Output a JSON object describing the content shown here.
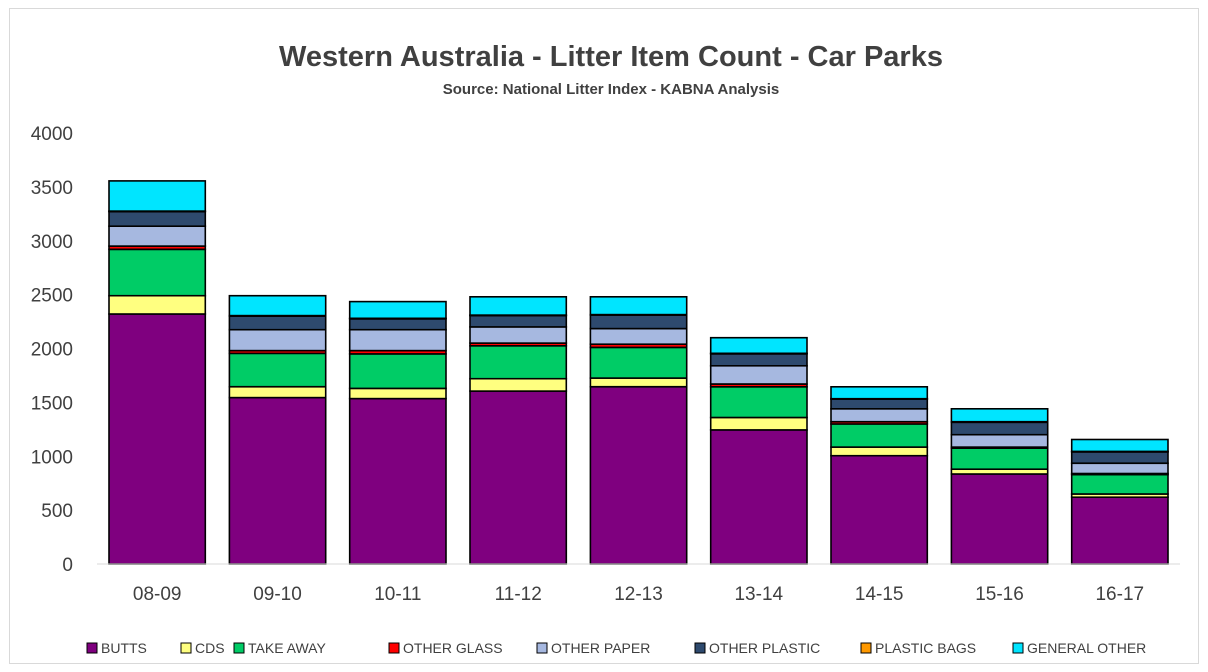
{
  "chart_data": {
    "type": "bar",
    "stacked": true,
    "title": "Western Australia  - Litter Item Count - Car Parks",
    "subtitle": "Source: National Litter Index - KABNA Analysis",
    "xlabel": "",
    "ylabel": "",
    "ylim": [
      0,
      4000
    ],
    "yticks": [
      0,
      500,
      1000,
      1500,
      2000,
      2500,
      3000,
      3500,
      4000
    ],
    "grid": false,
    "legend_position": "bottom",
    "categories": [
      "08-09",
      "09-10",
      "10-11",
      "11-12",
      "12-13",
      "13-14",
      "14-15",
      "15-16",
      "16-17"
    ],
    "series": [
      {
        "name": "BUTTS",
        "color": "#7f007f",
        "values": [
          2320,
          1545,
          1535,
          1605,
          1645,
          1245,
          1005,
          835,
          620
        ]
      },
      {
        "name": "CDS",
        "color": "#ffff80",
        "values": [
          170,
          100,
          95,
          115,
          80,
          115,
          80,
          45,
          30
        ]
      },
      {
        "name": "TAKE AWAY",
        "color": "#00cc66",
        "values": [
          430,
          310,
          320,
          305,
          285,
          285,
          215,
          195,
          180
        ]
      },
      {
        "name": "OTHER GLASS",
        "color": "#ff0000",
        "values": [
          30,
          25,
          30,
          25,
          30,
          25,
          20,
          10,
          10
        ]
      },
      {
        "name": "OTHER PAPER",
        "color": "#a6b8e0",
        "values": [
          185,
          195,
          195,
          150,
          145,
          170,
          120,
          115,
          95
        ]
      },
      {
        "name": "OTHER PLASTIC",
        "color": "#2e4a6e",
        "values": [
          135,
          125,
          100,
          105,
          125,
          110,
          90,
          115,
          105
        ]
      },
      {
        "name": "PLASTIC BAGS",
        "color": "#ff9900",
        "values": [
          5,
          5,
          5,
          5,
          5,
          5,
          5,
          5,
          5
        ]
      },
      {
        "name": "GENERAL OTHER",
        "color": "#00e5ff",
        "values": [
          280,
          185,
          155,
          170,
          165,
          145,
          110,
          120,
          110
        ]
      }
    ]
  }
}
